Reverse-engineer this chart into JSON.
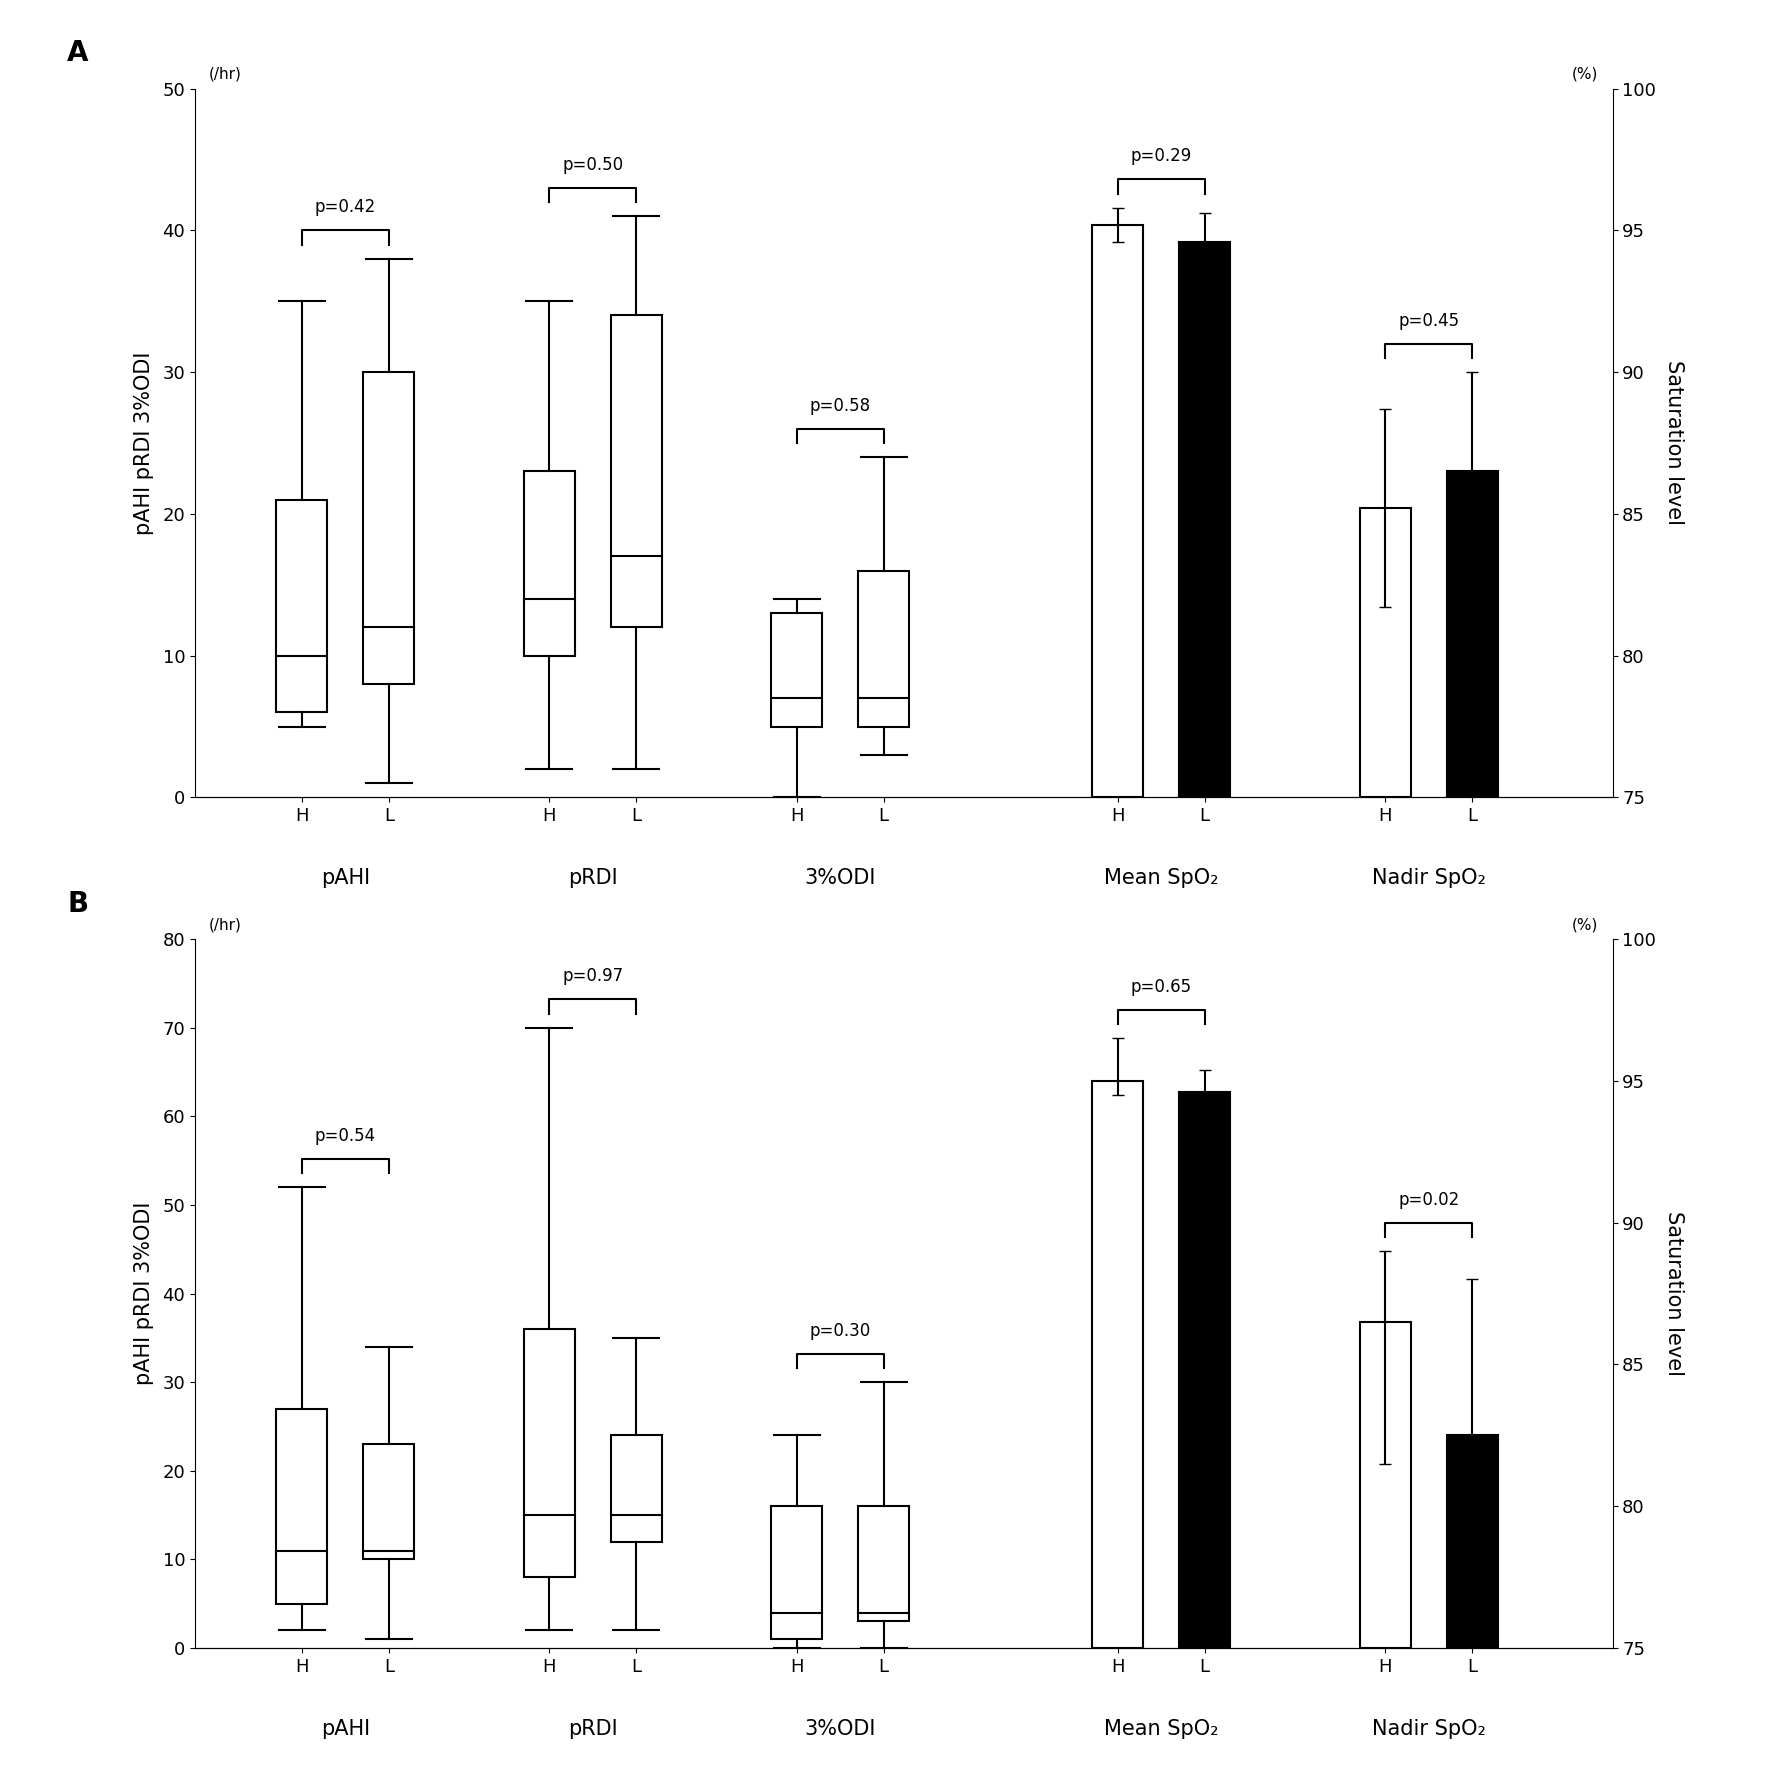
{
  "panel_A": {
    "boxplots": {
      "pAHI": {
        "H": {
          "median": 10,
          "q1": 6,
          "q3": 21,
          "whisker_lo": 5,
          "whisker_hi": 35
        },
        "L": {
          "median": 12,
          "q1": 8,
          "q3": 30,
          "whisker_lo": 1,
          "whisker_hi": 38
        }
      },
      "pRDI": {
        "H": {
          "median": 14,
          "q1": 10,
          "q3": 23,
          "whisker_lo": 2,
          "whisker_hi": 35
        },
        "L": {
          "median": 17,
          "q1": 12,
          "q3": 34,
          "whisker_lo": 2,
          "whisker_hi": 41
        }
      },
      "3%ODI": {
        "H": {
          "median": 7,
          "q1": 5,
          "q3": 13,
          "whisker_lo": 0,
          "whisker_hi": 14
        },
        "L": {
          "median": 7,
          "q1": 5,
          "q3": 16,
          "whisker_lo": 3,
          "whisker_hi": 24
        }
      }
    },
    "bars": {
      "Mean SpO2": {
        "H": {
          "mean": 95.2,
          "err_lo": 0.6,
          "err_hi": 0.6
        },
        "L": {
          "mean": 94.6,
          "err_lo": 0.5,
          "err_hi": 1.0
        }
      },
      "Nadir SpO2": {
        "H": {
          "mean": 85.2,
          "err_lo": 3.5,
          "err_hi": 3.5
        },
        "L": {
          "mean": 86.5,
          "err_lo": 3.5,
          "err_hi": 3.5
        }
      }
    },
    "pvalues": {
      "pAHI": "p=0.42",
      "pRDI": "p=0.50",
      "3%ODI": "p=0.58",
      "Mean SpO2": "p=0.29",
      "Nadir SpO2": "p=0.45"
    },
    "left_ylim": [
      0,
      50
    ],
    "right_ylim": [
      75,
      100
    ],
    "left_yticks": [
      0,
      10,
      20,
      30,
      40,
      50
    ],
    "right_yticks": [
      75,
      80,
      85,
      90,
      95,
      100
    ],
    "label": "A"
  },
  "panel_B": {
    "boxplots": {
      "pAHI": {
        "H": {
          "median": 11,
          "q1": 5,
          "q3": 27,
          "whisker_lo": 2,
          "whisker_hi": 52
        },
        "L": {
          "median": 11,
          "q1": 10,
          "q3": 23,
          "whisker_lo": 1,
          "whisker_hi": 34
        }
      },
      "pRDI": {
        "H": {
          "median": 15,
          "q1": 8,
          "q3": 36,
          "whisker_lo": 2,
          "whisker_hi": 70
        },
        "L": {
          "median": 15,
          "q1": 12,
          "q3": 24,
          "whisker_lo": 2,
          "whisker_hi": 35
        }
      },
      "3%ODI": {
        "H": {
          "median": 4,
          "q1": 1,
          "q3": 16,
          "whisker_lo": 0,
          "whisker_hi": 24
        },
        "L": {
          "median": 4,
          "q1": 3,
          "q3": 16,
          "whisker_lo": 0,
          "whisker_hi": 30
        }
      }
    },
    "bars": {
      "Mean SpO2": {
        "H": {
          "mean": 95.0,
          "err_lo": 0.5,
          "err_hi": 1.5
        },
        "L": {
          "mean": 94.6,
          "err_lo": 0.5,
          "err_hi": 0.8
        }
      },
      "Nadir SpO2": {
        "H": {
          "mean": 86.5,
          "err_lo": 5.0,
          "err_hi": 2.5
        },
        "L": {
          "mean": 82.5,
          "err_lo": 3.5,
          "err_hi": 5.5
        }
      }
    },
    "pvalues": {
      "pAHI": "p=0.54",
      "pRDI": "p=0.97",
      "3%ODI": "p=0.30",
      "Mean SpO2": "p=0.65",
      "Nadir SpO2": "p=0.02"
    },
    "left_ylim": [
      0,
      80
    ],
    "right_ylim": [
      75,
      100
    ],
    "left_yticks": [
      0,
      10,
      20,
      30,
      40,
      50,
      60,
      70,
      80
    ],
    "right_yticks": [
      75,
      80,
      85,
      90,
      95,
      100
    ],
    "label": "B"
  },
  "box_color": "#ffffff",
  "box_edgecolor": "#000000",
  "bar_color_H": "#ffffff",
  "bar_color_L": "#000000",
  "bar_edgecolor": "#000000",
  "left_ylabel": "pAHI pRDI 3%ODI",
  "right_ylabel": "Saturation level",
  "left_unit": "(/hr)",
  "right_unit": "(%)",
  "fontsize_label": 15,
  "fontsize_tick": 13,
  "fontsize_pval": 12,
  "fontsize_panel": 20,
  "box_width": 0.38,
  "bar_width": 0.38
}
